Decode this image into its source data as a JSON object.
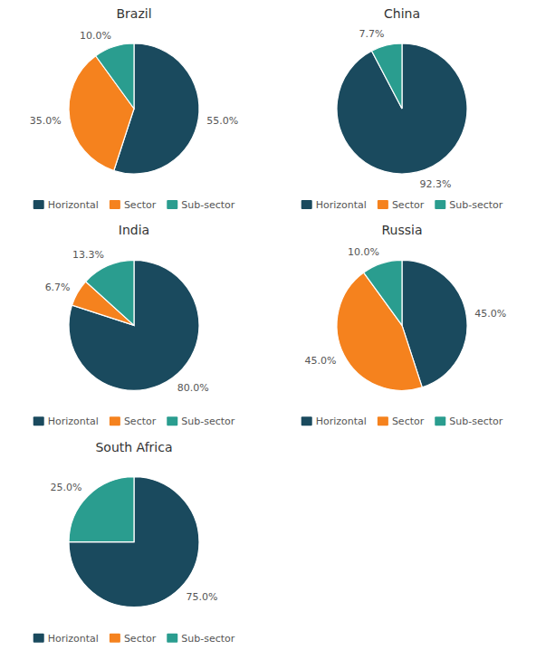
{
  "chart_data": [
    {
      "type": "pie",
      "title": "Brazil",
      "categories": [
        "Horizontal",
        "Sector",
        "Sub-sector"
      ],
      "values": [
        55.0,
        35.0,
        10.0
      ],
      "value_labels": [
        "55.0%",
        "35.0%",
        "10.0%"
      ],
      "colors": [
        "#1a4a5e",
        "#f5821e",
        "#2a9d8f"
      ],
      "data_labels": true,
      "legend": "bottom"
    },
    {
      "type": "pie",
      "title": "China",
      "categories": [
        "Horizontal",
        "Sector",
        "Sub-sector"
      ],
      "values": [
        92.3,
        null,
        7.7
      ],
      "value_labels": [
        "92.3%",
        null,
        "7.7%"
      ],
      "colors": [
        "#1a4a5e",
        "#f5821e",
        "#2a9d8f"
      ],
      "data_labels": true,
      "legend": "bottom"
    },
    {
      "type": "pie",
      "title": "India",
      "categories": [
        "Horizontal",
        "Sector",
        "Sub-sector"
      ],
      "values": [
        80.0,
        6.7,
        13.3
      ],
      "value_labels": [
        "80.0%",
        "6.7%",
        "13.3%"
      ],
      "colors": [
        "#1a4a5e",
        "#f5821e",
        "#2a9d8f"
      ],
      "data_labels": true,
      "legend": "bottom"
    },
    {
      "type": "pie",
      "title": "Russia",
      "categories": [
        "Horizontal",
        "Sector",
        "Sub-sector"
      ],
      "values": [
        45.0,
        45.0,
        10.0
      ],
      "value_labels": [
        "45.0%",
        "45.0%",
        "10.0%"
      ],
      "colors": [
        "#1a4a5e",
        "#f5821e",
        "#2a9d8f"
      ],
      "data_labels": true,
      "legend": "bottom"
    },
    {
      "type": "pie",
      "title": "South Africa",
      "categories": [
        "Horizontal",
        "Sector",
        "Sub-sector"
      ],
      "values": [
        75.0,
        null,
        25.0
      ],
      "value_labels": [
        "75.0%",
        null,
        "25.0%"
      ],
      "colors": [
        "#1a4a5e",
        "#f5821e",
        "#2a9d8f"
      ],
      "data_labels": true,
      "legend": "bottom"
    }
  ]
}
